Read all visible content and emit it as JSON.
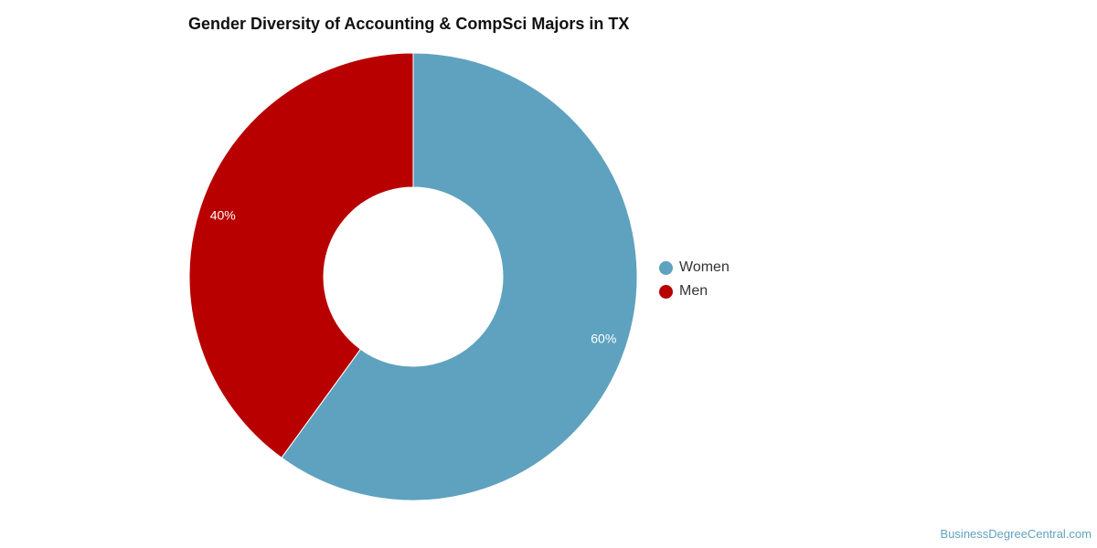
{
  "chart_data": {
    "type": "pie",
    "title": "Gender Diversity of Accounting & CompSci Majors in TX",
    "donut": true,
    "categories": [
      "Women",
      "Men"
    ],
    "values": [
      60,
      40
    ],
    "value_labels": [
      "60%",
      "40%"
    ],
    "colors": [
      "#5ea2bf",
      "#b80000"
    ],
    "legend": "right"
  },
  "credit": "BusinessDegreeCentral.com"
}
